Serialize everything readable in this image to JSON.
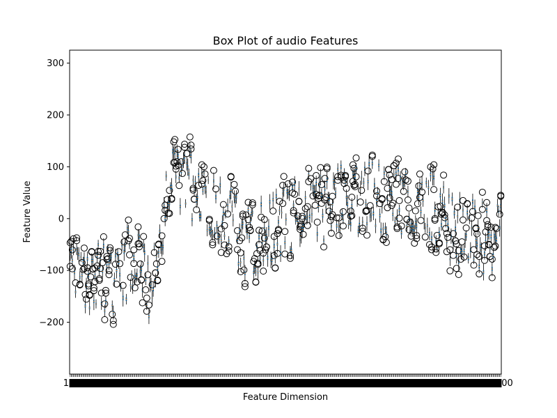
{
  "chart_data": {
    "type": "box",
    "title": "Box Plot of audio Features",
    "xlabel": "Feature Dimension",
    "ylabel": "Feature Value",
    "ylim": [
      -300,
      325
    ],
    "yticks": [
      -200,
      -100,
      0,
      100,
      200,
      300
    ],
    "ytick_labels": [
      "−200",
      "−100",
      "0",
      "100",
      "200",
      "300"
    ],
    "n_boxes": 400,
    "xtick_first": "1",
    "xtick_last": "400",
    "grid": false,
    "legend": "none",
    "colors": {
      "box": "#1f77b4",
      "median": "#ff7f0e",
      "whisker": "#000000",
      "flier": "#000000"
    }
  }
}
